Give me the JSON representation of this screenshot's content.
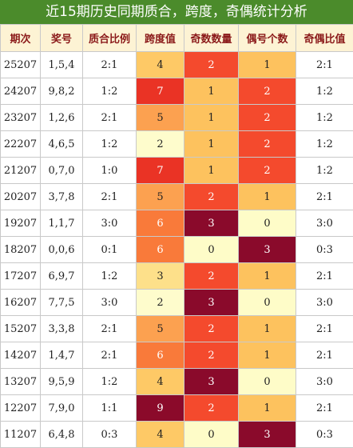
{
  "header": {
    "title": "近15期历史同期质合，跨度，奇偶统计分析"
  },
  "table": {
    "columns": [
      "期次",
      "奖号",
      "质合比例",
      "跨度值",
      "奇数数量",
      "偶号个数",
      "奇偶比值"
    ],
    "rows": [
      [
        "25207",
        "1,5,4",
        "2:1",
        "4",
        "2",
        "1",
        "2:1"
      ],
      [
        "24207",
        "9,8,2",
        "1:2",
        "7",
        "1",
        "2",
        "1:2"
      ],
      [
        "23207",
        "1,2,6",
        "2:1",
        "5",
        "1",
        "2",
        "1:2"
      ],
      [
        "22207",
        "4,6,5",
        "1:2",
        "2",
        "1",
        "2",
        "1:2"
      ],
      [
        "21207",
        "0,7,0",
        "1:0",
        "7",
        "1",
        "2",
        "1:2"
      ],
      [
        "20207",
        "3,7,8",
        "2:1",
        "5",
        "2",
        "1",
        "2:1"
      ],
      [
        "19207",
        "1,1,7",
        "3:0",
        "6",
        "3",
        "0",
        "3:0"
      ],
      [
        "18207",
        "0,0,6",
        "0:1",
        "6",
        "0",
        "3",
        "0:3"
      ],
      [
        "17207",
        "6,9,7",
        "1:2",
        "3",
        "2",
        "1",
        "2:1"
      ],
      [
        "16207",
        "7,7,5",
        "3:0",
        "2",
        "3",
        "0",
        "3:0"
      ],
      [
        "15207",
        "3,3,8",
        "2:1",
        "5",
        "2",
        "1",
        "2:1"
      ],
      [
        "14207",
        "1,4,7",
        "2:1",
        "6",
        "2",
        "1",
        "2:1"
      ],
      [
        "13207",
        "9,5,9",
        "1:2",
        "4",
        "3",
        "0",
        "3:0"
      ],
      [
        "12207",
        "7,9,0",
        "1:1",
        "9",
        "2",
        "1",
        "2:1"
      ],
      [
        "11207",
        "6,4,8",
        "0:3",
        "4",
        "0",
        "3",
        "0:3"
      ]
    ]
  }
}
